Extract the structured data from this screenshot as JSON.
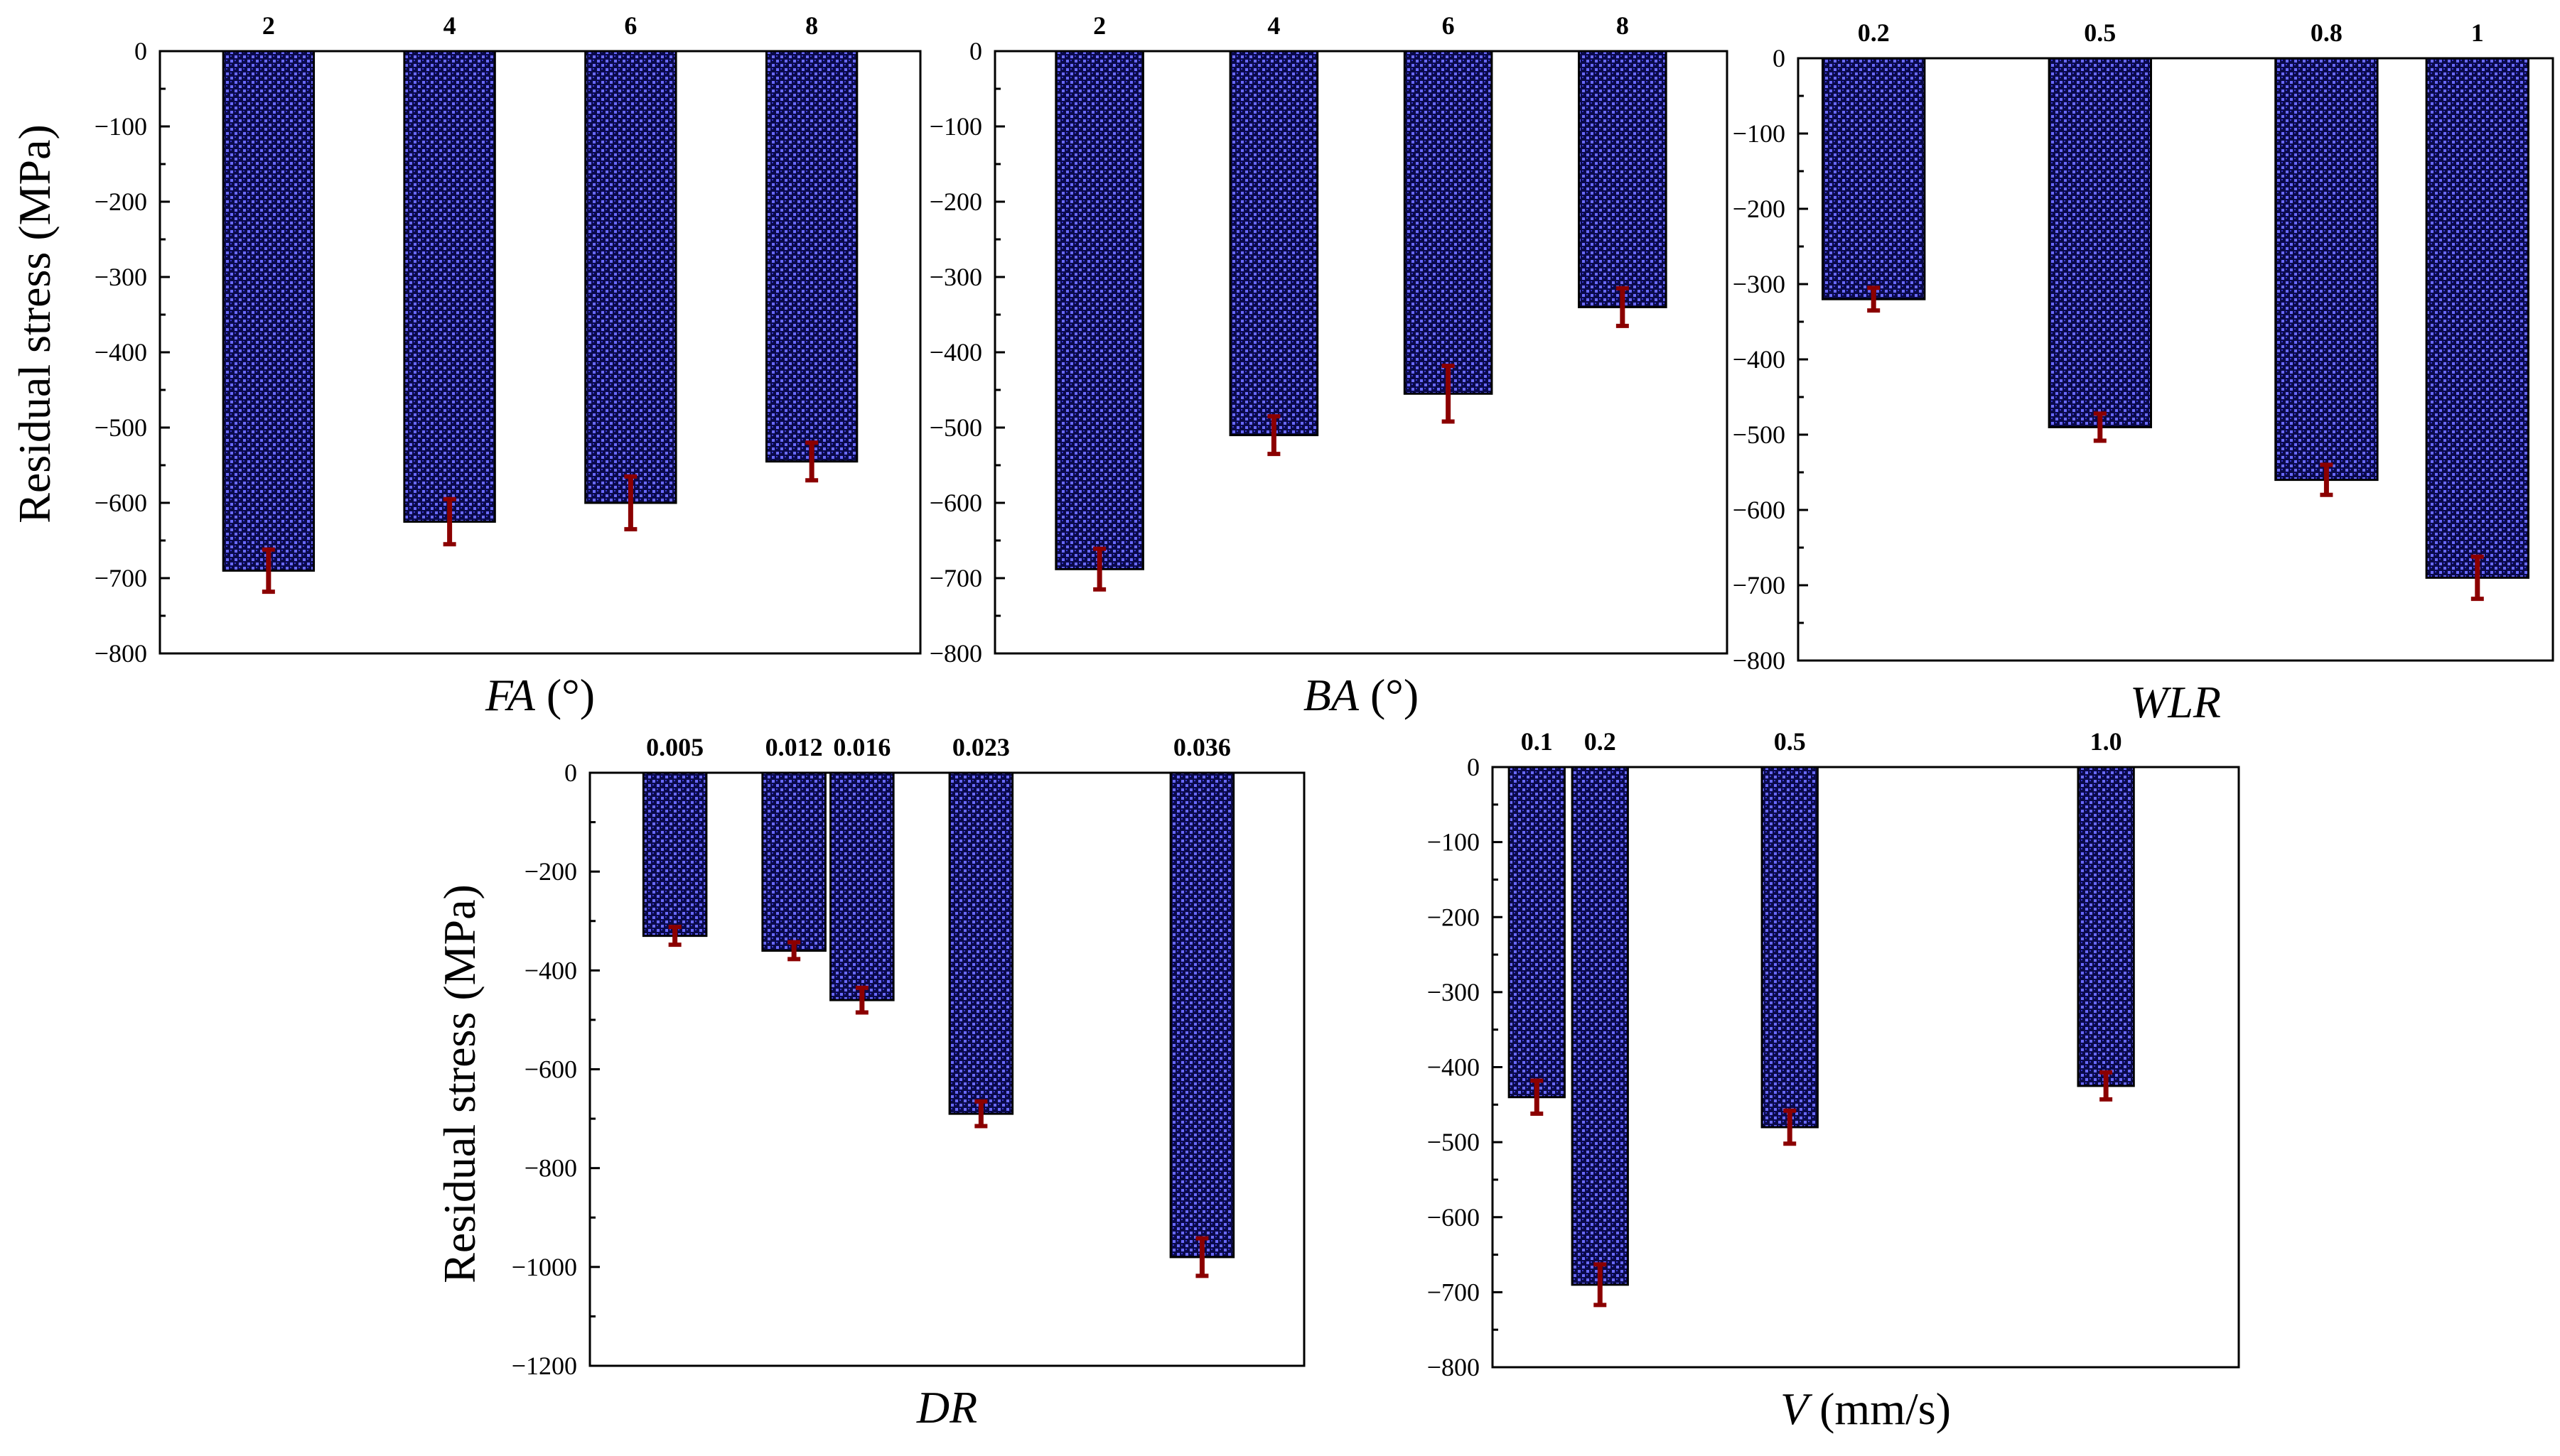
{
  "figure": {
    "y_axis_label": "Residual stress (MPa)"
  },
  "colors": {
    "bar_dark": "#0a0a4a",
    "bar_light": "#6a6aff",
    "error_bar": "#8b0000",
    "axis": "#000000"
  },
  "chart_data": [
    {
      "id": "fa",
      "type": "bar",
      "title": "",
      "xlabel": "FA (°)",
      "xlabel_italic": "FA",
      "xlabel_rest": " (°)",
      "ylabel": "Residual stress (MPa)",
      "ylim": [
        -800,
        0
      ],
      "yticks": [
        0,
        -100,
        -200,
        -300,
        -400,
        -500,
        -600,
        -700,
        -800
      ],
      "ytick_labels": [
        "0",
        "−100",
        "−200",
        "−300",
        "−400",
        "−500",
        "−600",
        "−700",
        "−800"
      ],
      "xlim": [
        0.8,
        9.2
      ],
      "categories": [
        "2",
        "4",
        "6",
        "8"
      ],
      "x": [
        2,
        4,
        6,
        8
      ],
      "bar_width": 1.0,
      "values": [
        -690,
        -625,
        -600,
        -545
      ],
      "errors": [
        28,
        30,
        35,
        25
      ]
    },
    {
      "id": "ba",
      "type": "bar",
      "title": "",
      "xlabel": "BA (°)",
      "xlabel_italic": "BA",
      "xlabel_rest": " (°)",
      "ylabel": "",
      "ylim": [
        -800,
        0
      ],
      "yticks": [
        0,
        -100,
        -200,
        -300,
        -400,
        -500,
        -600,
        -700,
        -800
      ],
      "ytick_labels": [
        "0",
        "−100",
        "−200",
        "−300",
        "−400",
        "−500",
        "−600",
        "−700",
        "−800"
      ],
      "xlim": [
        0.8,
        9.2
      ],
      "categories": [
        "2",
        "4",
        "6",
        "8"
      ],
      "x": [
        2,
        4,
        6,
        8
      ],
      "bar_width": 1.0,
      "values": [
        -688,
        -510,
        -455,
        -340
      ],
      "errors": [
        27,
        25,
        37,
        25
      ]
    },
    {
      "id": "wlr",
      "type": "bar",
      "title": "",
      "xlabel": "WLR",
      "xlabel_italic": "WLR",
      "xlabel_rest": "",
      "ylabel": "",
      "ylim": [
        -800,
        0
      ],
      "yticks": [
        0,
        -100,
        -200,
        -300,
        -400,
        -500,
        -600,
        -700,
        -800
      ],
      "ytick_labels": [
        "0",
        "−100",
        "−200",
        "−300",
        "−400",
        "−500",
        "−600",
        "−700",
        "−800"
      ],
      "xlim": [
        0.1,
        1.1
      ],
      "categories": [
        "0.2",
        "0.5",
        "0.8",
        "1"
      ],
      "x": [
        0.2,
        0.5,
        0.8,
        1.0
      ],
      "bar_width": 0.135,
      "values": [
        -320,
        -490,
        -560,
        -690
      ],
      "errors": [
        15,
        18,
        20,
        28
      ]
    },
    {
      "id": "dr",
      "type": "bar",
      "title": "",
      "xlabel": "DR",
      "xlabel_italic": "DR",
      "xlabel_rest": "",
      "ylabel": "Residual stress (MPa)",
      "ylim": [
        -1200,
        0
      ],
      "yticks": [
        0,
        -200,
        -400,
        -600,
        -800,
        -1000,
        -1200
      ],
      "ytick_labels": [
        "0",
        "−200",
        "−400",
        "−600",
        "−800",
        "−1000",
        "−1200"
      ],
      "xlim": [
        0.0,
        0.042
      ],
      "categories": [
        "0.005",
        "0.012",
        "0.016",
        "0.023",
        "0.036"
      ],
      "x": [
        0.005,
        0.012,
        0.016,
        0.023,
        0.036
      ],
      "bar_width": 0.0037,
      "values": [
        -330,
        -360,
        -460,
        -690,
        -980
      ],
      "errors": [
        18,
        17,
        25,
        25,
        38
      ]
    },
    {
      "id": "v",
      "type": "bar",
      "title": "",
      "xlabel": "V (mm/s)",
      "xlabel_italic": "V",
      "xlabel_rest": " (mm/s)",
      "ylabel": "",
      "ylim": [
        -800,
        0
      ],
      "yticks": [
        0,
        -100,
        -200,
        -300,
        -400,
        -500,
        -600,
        -700,
        -800
      ],
      "ytick_labels": [
        "0",
        "−100",
        "−200",
        "−300",
        "−400",
        "−500",
        "−600",
        "−700",
        "−800"
      ],
      "xlim": [
        0.03,
        1.21
      ],
      "categories": [
        "0.1",
        "0.2",
        "0.5",
        "1.0"
      ],
      "x": [
        0.1,
        0.2,
        0.5,
        1.0
      ],
      "bar_width": 0.088,
      "values": [
        -440,
        -690,
        -480,
        -425
      ],
      "errors": [
        22,
        27,
        22,
        18
      ]
    }
  ]
}
